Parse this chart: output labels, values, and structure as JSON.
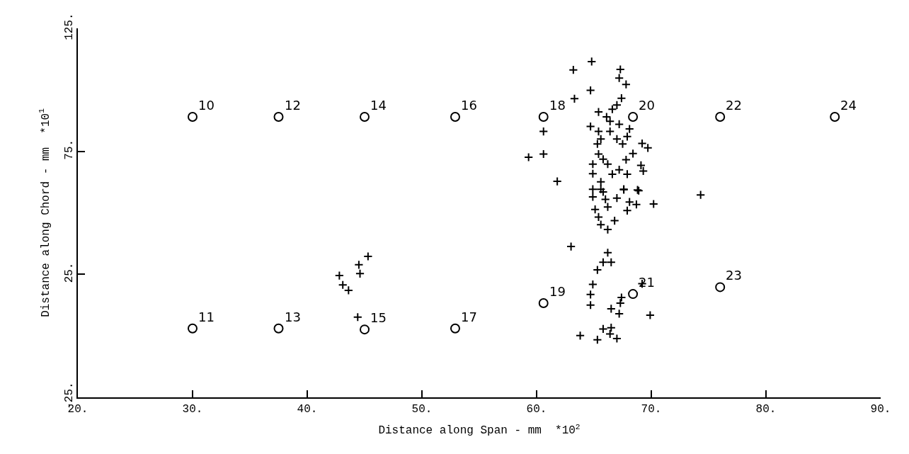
{
  "chart_data": {
    "type": "scatter",
    "xlabel": "Distance along Span - mm  *10$^{2}$",
    "ylabel": "Distance along Chord - mm  *10$^{1}$",
    "xlim": [
      20,
      90
    ],
    "xticks": [
      {
        "value": 20,
        "label": "20."
      },
      {
        "value": 30,
        "label": "30."
      },
      {
        "value": 40,
        "label": "40."
      },
      {
        "value": 50,
        "label": "50."
      },
      {
        "value": 60,
        "label": "60."
      },
      {
        "value": 70,
        "label": "70."
      },
      {
        "value": 80,
        "label": "80."
      },
      {
        "value": 90,
        "label": "90."
      }
    ],
    "ylim": [
      -25,
      125
    ],
    "yticks": [
      {
        "value": -25,
        "label": "-25."
      },
      {
        "value": 25,
        "label": "25."
      },
      {
        "value": 75,
        "label": "75."
      },
      {
        "value": 125,
        "label": "125."
      }
    ],
    "series": [
      {
        "marker": "circle",
        "color": "#000000",
        "x": [
          30.0,
          37.5,
          45.0,
          52.9,
          60.6,
          68.4,
          76.0,
          86.0,
          30.0,
          37.5,
          45.0,
          52.9,
          60.6,
          68.4,
          76.0
        ],
        "values": [
          89,
          89,
          89,
          89,
          89,
          89,
          89,
          89,
          3,
          3,
          2.6,
          3,
          13.3,
          17,
          19.8
        ]
      },
      {
        "marker": "cross",
        "color": "#000000",
        "x": [
          64.8,
          63.2,
          67.3,
          67.2,
          67.8,
          64.7,
          63.3,
          67.4,
          67.0,
          66.6,
          65.4,
          66.1,
          66.4,
          67.2,
          60.6,
          64.7,
          65.4,
          66.4,
          68.1,
          67.9,
          65.6,
          67.0,
          65.3,
          67.5,
          69.2,
          69.7,
          59.3,
          60.6,
          65.4,
          65.8,
          68.4,
          64.9,
          66.2,
          67.8,
          69.1,
          69.3,
          64.9,
          66.6,
          67.2,
          67.9,
          61.8,
          65.6,
          74.3,
          65.6,
          67.6,
          68.8,
          64.9,
          65.8,
          67.6,
          68.9,
          70.2,
          64.9,
          66.0,
          67.0,
          68.1,
          68.7,
          65.1,
          66.2,
          67.9,
          65.4,
          66.8,
          65.6,
          66.2,
          63.0,
          66.2,
          66.5,
          65.8,
          65.3,
          64.9,
          69.2,
          64.7,
          67.4,
          67.3,
          64.7,
          66.5,
          67.2,
          69.9,
          65.8,
          66.5,
          66.4,
          67.0,
          63.8,
          65.3,
          45.3,
          44.5,
          44.6,
          42.8,
          43.1,
          43.6,
          44.4
        ],
        "values": [
          111.5,
          108.1,
          108.3,
          104.8,
          102.2,
          99.8,
          96.4,
          96.6,
          93.8,
          92.1,
          91.0,
          89.0,
          87.2,
          86.0,
          83.1,
          85.1,
          83.1,
          83.1,
          84.1,
          81.0,
          80.0,
          80.0,
          78.0,
          78.0,
          78.2,
          76.4,
          72.6,
          73.9,
          73.9,
          71.8,
          74.1,
          69.8,
          69.8,
          71.6,
          69.3,
          67.0,
          65.9,
          65.7,
          67.5,
          65.7,
          62.8,
          62.6,
          57.3,
          59.6,
          59.6,
          59.3,
          59.6,
          58.5,
          59.4,
          59.0,
          53.6,
          56.5,
          55.5,
          56.0,
          54.4,
          53.4,
          51.4,
          52.4,
          50.9,
          48.3,
          46.8,
          45.2,
          43.2,
          36.3,
          33.8,
          29.9,
          29.9,
          26.8,
          20.9,
          21.2,
          16.8,
          15.6,
          13.3,
          12.5,
          11.0,
          9.0,
          8.4,
          2.8,
          3.3,
          0.8,
          -1.1,
          0.1,
          -1.6,
          32.3,
          28.9,
          25.3,
          24.5,
          20.7,
          18.5,
          7.6
        ]
      }
    ],
    "annotations": [
      {
        "text": "10",
        "x": 30.0,
        "y": 89
      },
      {
        "text": "12",
        "x": 37.5,
        "y": 89
      },
      {
        "text": "14",
        "x": 45.0,
        "y": 89
      },
      {
        "text": "16",
        "x": 52.9,
        "y": 89
      },
      {
        "text": "18",
        "x": 60.6,
        "y": 89
      },
      {
        "text": "20",
        "x": 68.4,
        "y": 89
      },
      {
        "text": "22",
        "x": 76.0,
        "y": 89
      },
      {
        "text": "24",
        "x": 86.0,
        "y": 89
      },
      {
        "text": "11",
        "x": 30.0,
        "y": 3
      },
      {
        "text": "13",
        "x": 37.5,
        "y": 3
      },
      {
        "text": "15",
        "x": 45.0,
        "y": 2.6
      },
      {
        "text": "17",
        "x": 52.9,
        "y": 3
      },
      {
        "text": "19",
        "x": 60.6,
        "y": 13.3
      },
      {
        "text": "21",
        "x": 68.4,
        "y": 17
      },
      {
        "text": "23",
        "x": 76.0,
        "y": 19.8
      }
    ]
  }
}
